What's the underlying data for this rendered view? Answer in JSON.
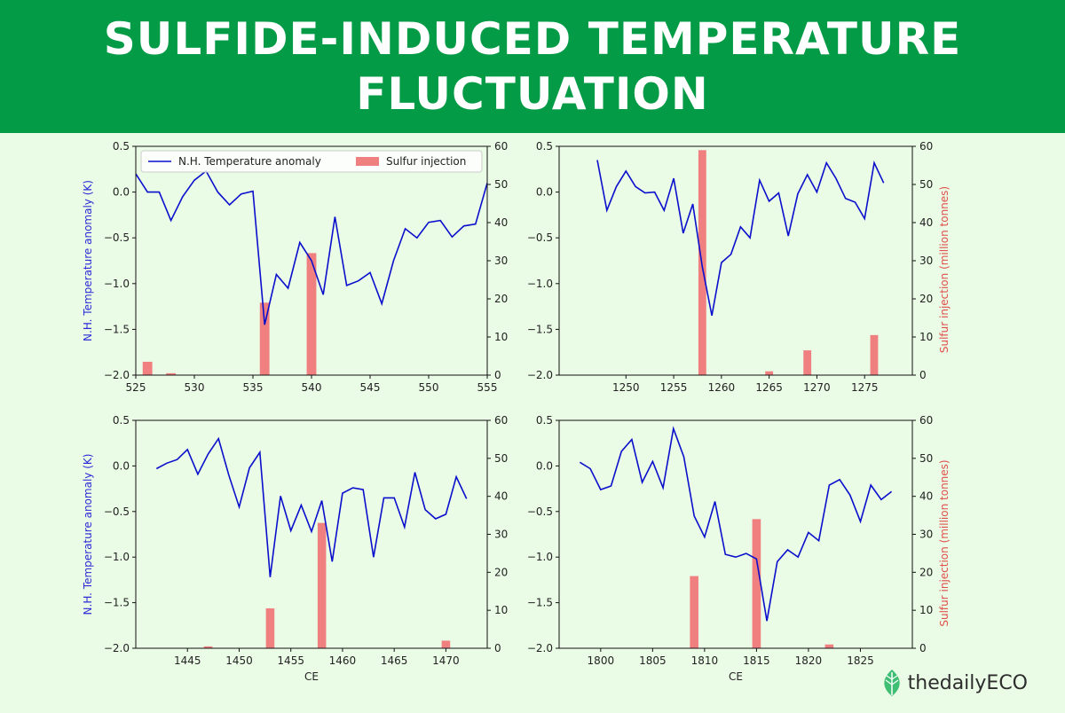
{
  "banner": {
    "title": "SULFIDE-INDUCED TEMPERATURE FLUCTUATION"
  },
  "logo": {
    "text": "thedailyECO"
  },
  "colors": {
    "temperature": "#0a0fcc",
    "sulfur": "#f08080",
    "banner": "#049b47",
    "background": "#eafbe6",
    "left_axis": "#2b2bd6",
    "right_axis": "#e0504a"
  },
  "legend": {
    "temperature": "N.H. Temperature anomaly",
    "sulfur": "Sulfur injection"
  },
  "chart_data": [
    {
      "type": "line+bar",
      "xlim": [
        525,
        555
      ],
      "xticks": [
        525,
        530,
        535,
        540,
        545,
        550,
        555
      ],
      "ylim_left": [
        -2.0,
        0.5
      ],
      "yticks_left": [
        "0.5",
        "0.0",
        "−0.5",
        "−1.0",
        "−1.5",
        "−2.0"
      ],
      "ylim_right": [
        0,
        60
      ],
      "yticks_right": [
        "60",
        "50",
        "40",
        "30",
        "20",
        "10",
        "0"
      ],
      "ylabel_left": "N.H. Temperature anomaly (K)",
      "ylabel_right": "",
      "xlabel": "",
      "legend": "top",
      "temperature": {
        "x": [
          525,
          526,
          527,
          528,
          529,
          530,
          531,
          532,
          533,
          534,
          535,
          536,
          537,
          538,
          539,
          540,
          541,
          542,
          543,
          544,
          545,
          546,
          547,
          548,
          549,
          550,
          551,
          552,
          553,
          554,
          555
        ],
        "y": [
          0.2,
          0.0,
          0.0,
          -0.31,
          -0.05,
          0.13,
          0.23,
          0.0,
          -0.14,
          -0.02,
          0.01,
          -1.45,
          -0.9,
          -1.05,
          -0.55,
          -0.75,
          -1.12,
          -0.27,
          -1.02,
          -0.97,
          -0.88,
          -1.22,
          -0.75,
          -0.4,
          -0.5,
          -0.33,
          -0.31,
          -0.49,
          -0.37,
          -0.35,
          0.1
        ]
      },
      "sulfur": {
        "x": [
          526,
          528,
          536,
          540
        ],
        "values": [
          3.5,
          0.5,
          19,
          32
        ]
      }
    },
    {
      "type": "line+bar",
      "xlim": [
        1243,
        1280
      ],
      "xticks": [
        1250,
        1255,
        1260,
        1265,
        1270,
        1275
      ],
      "ylim_left": [
        -2.0,
        0.5
      ],
      "yticks_left": [
        "0.5",
        "0.0",
        "−0.5",
        "−1.0",
        "−1.5",
        "−2.0"
      ],
      "ylim_right": [
        0,
        60
      ],
      "yticks_right": [
        "60",
        "50",
        "40",
        "30",
        "20",
        "10",
        "0"
      ],
      "ylabel_left": "",
      "ylabel_right": "Sulfur injection (million tonnes)",
      "xlabel": "",
      "legend": "",
      "temperature": {
        "x": [
          1247,
          1248,
          1249,
          1250,
          1251,
          1252,
          1253,
          1254,
          1255,
          1256,
          1257,
          1258,
          1259,
          1260,
          1261,
          1262,
          1263,
          1264,
          1265,
          1266,
          1267,
          1268,
          1269,
          1270,
          1271,
          1272,
          1273,
          1274,
          1275,
          1276,
          1277
        ],
        "y": [
          0.35,
          -0.2,
          0.06,
          0.23,
          0.06,
          -0.01,
          0.0,
          -0.2,
          0.15,
          -0.45,
          -0.13,
          -0.82,
          -1.35,
          -0.77,
          -0.68,
          -0.38,
          -0.5,
          0.13,
          -0.1,
          -0.01,
          -0.48,
          -0.02,
          0.19,
          0.0,
          0.32,
          0.15,
          -0.07,
          -0.11,
          -0.29,
          0.32,
          0.1
        ]
      },
      "sulfur": {
        "x": [
          1258,
          1265,
          1269,
          1276
        ],
        "values": [
          59,
          1,
          6.5,
          10.5
        ]
      }
    },
    {
      "type": "line+bar",
      "xlim": [
        1440,
        1474
      ],
      "xticks": [
        1445,
        1450,
        1455,
        1460,
        1465,
        1470
      ],
      "ylim_left": [
        -2.0,
        0.5
      ],
      "yticks_left": [
        "0.5",
        "0.0",
        "−0.5",
        "−1.0",
        "−1.5",
        "−2.0"
      ],
      "ylim_right": [
        0,
        60
      ],
      "yticks_right": [
        "60",
        "50",
        "40",
        "30",
        "20",
        "10",
        "0"
      ],
      "ylabel_left": "N.H. Temperature anomaly (K)",
      "ylabel_right": "",
      "xlabel": "CE",
      "legend": "",
      "temperature": {
        "x": [
          1442,
          1443,
          1444,
          1445,
          1446,
          1447,
          1448,
          1449,
          1450,
          1451,
          1452,
          1453,
          1454,
          1455,
          1456,
          1457,
          1458,
          1459,
          1460,
          1461,
          1462,
          1463,
          1464,
          1465,
          1466,
          1467,
          1468,
          1469,
          1470,
          1471,
          1472
        ],
        "y": [
          -0.03,
          0.03,
          0.07,
          0.18,
          -0.09,
          0.13,
          0.3,
          -0.1,
          -0.45,
          -0.02,
          0.15,
          -1.22,
          -0.33,
          -0.71,
          -0.43,
          -0.72,
          -0.38,
          -1.05,
          -0.3,
          -0.24,
          -0.26,
          -1.0,
          -0.35,
          -0.35,
          -0.67,
          -0.07,
          -0.48,
          -0.58,
          -0.53,
          -0.12,
          -0.36
        ]
      },
      "sulfur": {
        "x": [
          1447,
          1453,
          1458,
          1470
        ],
        "values": [
          0.5,
          10.5,
          33,
          2
        ]
      }
    },
    {
      "type": "line+bar",
      "xlim": [
        1796,
        1830
      ],
      "xticks": [
        1800,
        1805,
        1810,
        1815,
        1820,
        1825
      ],
      "ylim_left": [
        -2.0,
        0.5
      ],
      "yticks_left": [
        "0.5",
        "0.0",
        "−0.5",
        "−1.0",
        "−1.5",
        "−2.0"
      ],
      "ylim_right": [
        0,
        60
      ],
      "yticks_right": [
        "60",
        "50",
        "40",
        "30",
        "20",
        "10",
        "0"
      ],
      "ylabel_left": "",
      "ylabel_right": "Sulfur injection (million tonnes)",
      "xlabel": "CE",
      "legend": "",
      "temperature": {
        "x": [
          1798,
          1799,
          1800,
          1801,
          1802,
          1803,
          1804,
          1805,
          1806,
          1807,
          1808,
          1809,
          1810,
          1811,
          1812,
          1813,
          1814,
          1815,
          1816,
          1817,
          1818,
          1819,
          1820,
          1821,
          1822,
          1823,
          1824,
          1825,
          1826,
          1827,
          1828
        ],
        "y": [
          0.04,
          -0.03,
          -0.26,
          -0.22,
          0.16,
          0.29,
          -0.18,
          0.05,
          -0.24,
          0.41,
          0.1,
          -0.55,
          -0.78,
          -0.39,
          -0.97,
          -1.0,
          -0.96,
          -1.02,
          -1.7,
          -1.05,
          -0.92,
          -1.0,
          -0.73,
          -0.82,
          -0.21,
          -0.15,
          -0.32,
          -0.61,
          -0.21,
          -0.37,
          -0.28
        ]
      },
      "sulfur": {
        "x": [
          1809,
          1815,
          1822
        ],
        "values": [
          19,
          34,
          1
        ]
      }
    }
  ]
}
